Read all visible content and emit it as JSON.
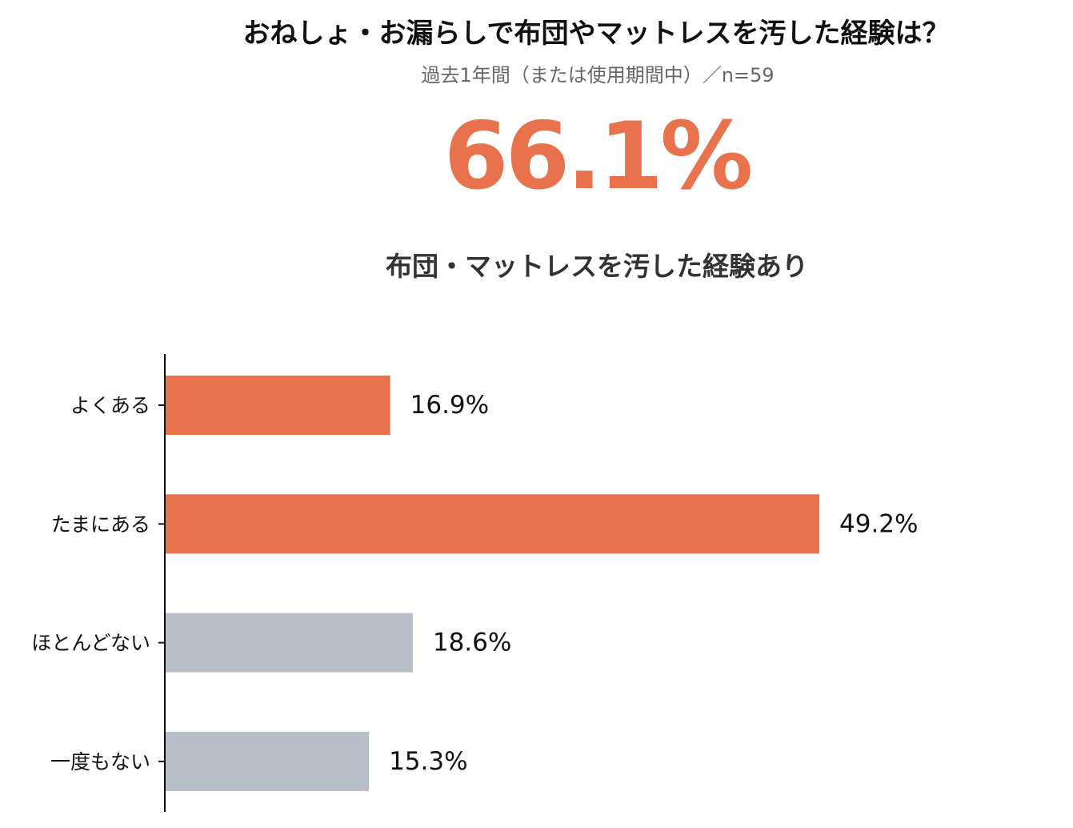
{
  "header": {
    "title": "おねしょ・お漏らしで布団やマットレスを汚した経験は？",
    "subtitle": "過去1年間（または使用期間中）／n=59",
    "headline_value": "66.1%",
    "headline_caption": "布団・マットレスを汚した経験あり"
  },
  "chart_data": {
    "type": "bar",
    "orientation": "horizontal",
    "title": "おねしょ・お漏らしで布団やマットレスを汚した経験は？",
    "categories": [
      "よくある",
      "たまにある",
      "ほとんどない",
      "一度もない"
    ],
    "values": [
      16.9,
      49.2,
      18.6,
      15.3
    ],
    "value_labels": [
      "16.9%",
      "49.2%",
      "18.6%",
      "15.3%"
    ],
    "bar_colors": [
      "#e8734c",
      "#e8734c",
      "#b8bec8",
      "#b8bec8"
    ],
    "xlim": [
      0,
      60
    ],
    "grid": false,
    "xlabel": "",
    "ylabel": ""
  },
  "colors": {
    "accent": "#e8724b",
    "neutral_bar": "#b8bec8",
    "axis": "#111111"
  }
}
